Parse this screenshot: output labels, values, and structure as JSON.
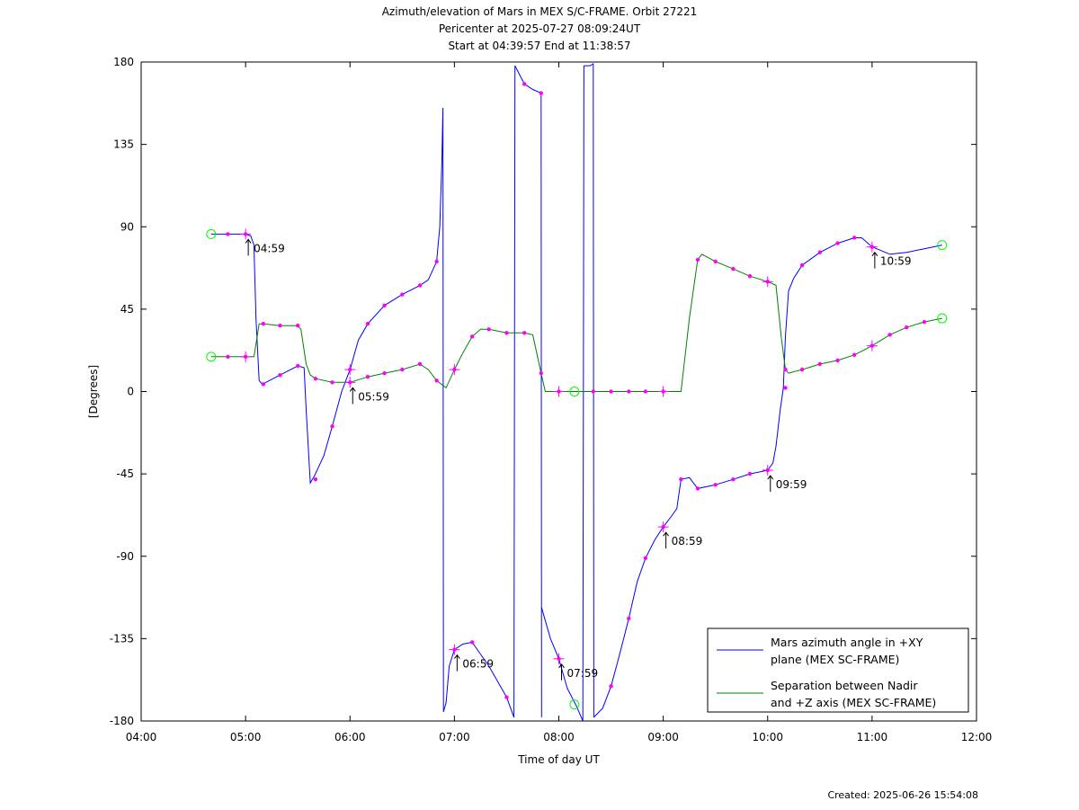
{
  "header": {
    "line1": "Azimuth/elevation of Mars in MEX S/C-FRAME.  Orbit 27221",
    "line2": "Pericenter at 2025-07-27 08:09:24UT",
    "line3": "Start at 04:39:57 End at 11:38:57"
  },
  "footer": {
    "created": "Created: 2025-06-26 15:54:08"
  },
  "colors": {
    "azimuth": "#0000ff",
    "separation": "#008000",
    "marker": "#ff00ff",
    "endpoint": "#00ff00"
  },
  "chart_data": {
    "type": "line",
    "xlabel": "Time of day UT",
    "ylabel": "[Degrees]",
    "xlim": [
      4.0,
      12.0
    ],
    "ylim": [
      -180,
      180
    ],
    "x_ticks": [
      {
        "v": 4,
        "label": "04:00"
      },
      {
        "v": 5,
        "label": "05:00"
      },
      {
        "v": 6,
        "label": "06:00"
      },
      {
        "v": 7,
        "label": "07:00"
      },
      {
        "v": 8,
        "label": "08:00"
      },
      {
        "v": 9,
        "label": "09:00"
      },
      {
        "v": 10,
        "label": "10:00"
      },
      {
        "v": 11,
        "label": "11:00"
      },
      {
        "v": 12,
        "label": "12:00"
      }
    ],
    "y_ticks": [
      {
        "v": 180,
        "label": "180"
      },
      {
        "v": 135,
        "label": "135"
      },
      {
        "v": 90,
        "label": "90"
      },
      {
        "v": 45,
        "label": "45"
      },
      {
        "v": 0,
        "label": "0"
      },
      {
        "v": -45,
        "label": "-45"
      },
      {
        "v": -90,
        "label": "-90"
      },
      {
        "v": -135,
        "label": "-135"
      },
      {
        "v": -180,
        "label": "-180"
      }
    ],
    "grid": false,
    "legend_position": "bottom-right",
    "series": [
      {
        "name": "Mars azimuth angle in +XY plane (MEX SC-FRAME)",
        "legend_lines": [
          "Mars azimuth angle in +XY",
          "plane (MEX SC-FRAME)"
        ],
        "color": "#0000ff",
        "segments": [
          [
            [
              4.67,
              86
            ],
            [
              4.83,
              86
            ],
            [
              5.0,
              86
            ],
            [
              5.05,
              85
            ],
            [
              5.08,
              80
            ],
            [
              5.1,
              40
            ],
            [
              5.13,
              6
            ],
            [
              5.16,
              4
            ],
            [
              5.33,
              9
            ],
            [
              5.5,
              14
            ],
            [
              5.56,
              13
            ],
            [
              5.58,
              -10
            ],
            [
              5.62,
              -50
            ],
            [
              5.66,
              -46
            ],
            [
              5.75,
              -35
            ],
            [
              5.83,
              -19
            ],
            [
              5.92,
              0
            ],
            [
              6.0,
              12
            ],
            [
              6.08,
              28
            ],
            [
              6.17,
              37
            ],
            [
              6.33,
              47
            ],
            [
              6.5,
              53
            ],
            [
              6.67,
              58
            ],
            [
              6.75,
              61
            ],
            [
              6.83,
              71
            ],
            [
              6.86,
              90
            ],
            [
              6.88,
              125
            ],
            [
              6.89,
              155
            ],
            [
              6.895,
              -175
            ]
          ],
          [
            [
              6.895,
              -175
            ],
            [
              6.92,
              -170
            ],
            [
              6.95,
              -150
            ],
            [
              7.0,
              -141
            ],
            [
              7.08,
              -138
            ],
            [
              7.17,
              -137
            ],
            [
              7.33,
              -150
            ],
            [
              7.5,
              -167
            ],
            [
              7.57,
              -178
            ]
          ],
          [
            [
              7.57,
              -178
            ],
            [
              7.58,
              178
            ]
          ],
          [
            [
              7.58,
              178
            ],
            [
              7.67,
              168
            ],
            [
              7.75,
              165
            ],
            [
              7.83,
              163
            ],
            [
              7.835,
              -178
            ]
          ],
          [
            [
              7.835,
              -118
            ],
            [
              7.92,
              -135
            ],
            [
              8.0,
              -146
            ],
            [
              8.08,
              -162
            ],
            [
              8.17,
              -172
            ],
            [
              8.23,
              -180
            ]
          ],
          [
            [
              8.23,
              -180
            ],
            [
              8.24,
              178
            ]
          ],
          [
            [
              8.24,
              178
            ],
            [
              8.3,
              178
            ],
            [
              8.33,
              179
            ],
            [
              8.335,
              -178
            ]
          ],
          [
            [
              8.335,
              -178
            ],
            [
              8.42,
              -173
            ],
            [
              8.5,
              -161
            ],
            [
              8.58,
              -144
            ],
            [
              8.67,
              -124
            ],
            [
              8.75,
              -104
            ],
            [
              8.83,
              -91
            ],
            [
              8.92,
              -81
            ],
            [
              9.0,
              -74
            ],
            [
              9.08,
              -68
            ],
            [
              9.13,
              -64
            ],
            [
              9.17,
              -48
            ],
            [
              9.25,
              -47
            ],
            [
              9.33,
              -53
            ],
            [
              9.5,
              -51
            ],
            [
              9.67,
              -48
            ],
            [
              9.83,
              -45
            ],
            [
              10.0,
              -43
            ],
            [
              10.05,
              -39
            ],
            [
              10.08,
              -30
            ],
            [
              10.12,
              -10
            ],
            [
              10.15,
              2
            ],
            [
              10.17,
              30
            ],
            [
              10.2,
              55
            ],
            [
              10.25,
              62
            ],
            [
              10.33,
              69
            ],
            [
              10.5,
              76
            ],
            [
              10.67,
              81
            ],
            [
              10.83,
              84
            ],
            [
              10.9,
              84
            ],
            [
              11.0,
              79
            ],
            [
              11.17,
              75
            ],
            [
              11.33,
              76
            ],
            [
              11.5,
              78
            ],
            [
              11.67,
              80
            ]
          ]
        ]
      },
      {
        "name": "Separation between Nadir and +Z axis (MEX SC-FRAME)",
        "legend_lines": [
          "Separation between Nadir",
          "and +Z axis (MEX SC-FRAME)"
        ],
        "color": "#008000",
        "segments": [
          [
            [
              4.67,
              19
            ],
            [
              4.83,
              19
            ],
            [
              5.0,
              19
            ],
            [
              5.08,
              19
            ],
            [
              5.1,
              26
            ],
            [
              5.13,
              37
            ],
            [
              5.17,
              37
            ],
            [
              5.33,
              36
            ],
            [
              5.5,
              36
            ],
            [
              5.53,
              34
            ],
            [
              5.58,
              15
            ],
            [
              5.62,
              9
            ],
            [
              5.67,
              7
            ],
            [
              5.83,
              5
            ],
            [
              6.0,
              5
            ],
            [
              6.17,
              8
            ],
            [
              6.33,
              10
            ],
            [
              6.5,
              12
            ],
            [
              6.67,
              15
            ],
            [
              6.75,
              12
            ],
            [
              6.83,
              6
            ],
            [
              6.92,
              2
            ],
            [
              7.0,
              12
            ],
            [
              7.08,
              21
            ],
            [
              7.17,
              30
            ],
            [
              7.25,
              34
            ],
            [
              7.33,
              34
            ],
            [
              7.5,
              32
            ],
            [
              7.67,
              32
            ],
            [
              7.75,
              31
            ],
            [
              7.83,
              10
            ],
            [
              7.87,
              0
            ],
            [
              8.0,
              0
            ],
            [
              8.17,
              0
            ],
            [
              8.33,
              0
            ],
            [
              8.5,
              0
            ],
            [
              8.67,
              0
            ],
            [
              8.83,
              0
            ],
            [
              9.0,
              0
            ],
            [
              9.17,
              0
            ],
            [
              9.25,
              40
            ],
            [
              9.33,
              72
            ],
            [
              9.37,
              75
            ],
            [
              9.5,
              71
            ],
            [
              9.67,
              67
            ],
            [
              9.83,
              63
            ],
            [
              10.0,
              60
            ],
            [
              10.08,
              58
            ],
            [
              10.13,
              30
            ],
            [
              10.17,
              12
            ],
            [
              10.2,
              10
            ],
            [
              10.33,
              12
            ],
            [
              10.5,
              15
            ],
            [
              10.67,
              17
            ],
            [
              10.83,
              20
            ],
            [
              10.9,
              22
            ],
            [
              11.0,
              25
            ],
            [
              11.17,
              31
            ],
            [
              11.33,
              35
            ],
            [
              11.5,
              38
            ],
            [
              11.67,
              40
            ]
          ]
        ]
      }
    ],
    "markers": [
      [
        4.83,
        86
      ],
      [
        5.0,
        86
      ],
      [
        5.17,
        4
      ],
      [
        5.33,
        9
      ],
      [
        5.5,
        14
      ],
      [
        5.67,
        -48
      ],
      [
        5.83,
        -19
      ],
      [
        6.0,
        12
      ],
      [
        6.17,
        37
      ],
      [
        6.33,
        47
      ],
      [
        6.5,
        53
      ],
      [
        6.67,
        58
      ],
      [
        6.83,
        71
      ],
      [
        7.0,
        -141
      ],
      [
        7.17,
        -137
      ],
      [
        7.5,
        -167
      ],
      [
        7.67,
        168
      ],
      [
        7.83,
        163
      ],
      [
        8.0,
        -146
      ],
      [
        8.5,
        -161
      ],
      [
        8.67,
        -124
      ],
      [
        8.83,
        -91
      ],
      [
        9.0,
        -74
      ],
      [
        9.17,
        -48
      ],
      [
        9.33,
        -53
      ],
      [
        9.5,
        -51
      ],
      [
        9.67,
        -48
      ],
      [
        9.83,
        -45
      ],
      [
        10.0,
        -43
      ],
      [
        10.17,
        2
      ],
      [
        10.33,
        69
      ],
      [
        10.5,
        76
      ],
      [
        10.67,
        81
      ],
      [
        10.83,
        84
      ],
      [
        11.0,
        79
      ],
      [
        4.83,
        19
      ],
      [
        5.0,
        19
      ],
      [
        5.17,
        37
      ],
      [
        5.33,
        36
      ],
      [
        5.5,
        36
      ],
      [
        5.67,
        7
      ],
      [
        5.83,
        5
      ],
      [
        6.0,
        5
      ],
      [
        6.17,
        8
      ],
      [
        6.33,
        10
      ],
      [
        6.5,
        12
      ],
      [
        6.67,
        15
      ],
      [
        6.83,
        6
      ],
      [
        7.0,
        12
      ],
      [
        7.17,
        30
      ],
      [
        7.33,
        34
      ],
      [
        7.5,
        32
      ],
      [
        7.67,
        32
      ],
      [
        7.83,
        10
      ],
      [
        8.0,
        0
      ],
      [
        8.33,
        0
      ],
      [
        8.5,
        0
      ],
      [
        8.67,
        0
      ],
      [
        8.83,
        0
      ],
      [
        9.0,
        0
      ],
      [
        9.33,
        72
      ],
      [
        9.5,
        71
      ],
      [
        9.67,
        67
      ],
      [
        9.83,
        63
      ],
      [
        10.0,
        60
      ],
      [
        10.17,
        12
      ],
      [
        10.33,
        12
      ],
      [
        10.5,
        15
      ],
      [
        10.67,
        17
      ],
      [
        10.83,
        20
      ],
      [
        11.0,
        25
      ],
      [
        11.17,
        31
      ],
      [
        11.33,
        35
      ],
      [
        11.5,
        38
      ]
    ],
    "hour_crosses": [
      [
        5.0,
        86
      ],
      [
        5.0,
        19
      ],
      [
        6.0,
        12
      ],
      [
        6.0,
        5
      ],
      [
        7.0,
        -141
      ],
      [
        7.0,
        12
      ],
      [
        8.0,
        -146
      ],
      [
        8.0,
        0
      ],
      [
        9.0,
        -74
      ],
      [
        9.0,
        0
      ],
      [
        10.0,
        -43
      ],
      [
        10.0,
        60
      ],
      [
        11.0,
        79
      ],
      [
        11.0,
        25
      ]
    ],
    "endpoint_circles": [
      [
        4.67,
        86
      ],
      [
        4.67,
        19
      ],
      [
        8.15,
        -171
      ],
      [
        8.15,
        0
      ],
      [
        11.67,
        80
      ],
      [
        11.67,
        40
      ]
    ],
    "annotations": [
      {
        "x": 5.0,
        "y": 86,
        "label": "04:59"
      },
      {
        "x": 6.0,
        "y": 5,
        "label": "05:59"
      },
      {
        "x": 7.0,
        "y": -141,
        "label": "06:59"
      },
      {
        "x": 8.0,
        "y": -146,
        "label": "07:59"
      },
      {
        "x": 9.0,
        "y": -74,
        "label": "08:59"
      },
      {
        "x": 10.0,
        "y": -43,
        "label": "09:59"
      },
      {
        "x": 11.0,
        "y": 79,
        "label": "10:59"
      }
    ]
  }
}
